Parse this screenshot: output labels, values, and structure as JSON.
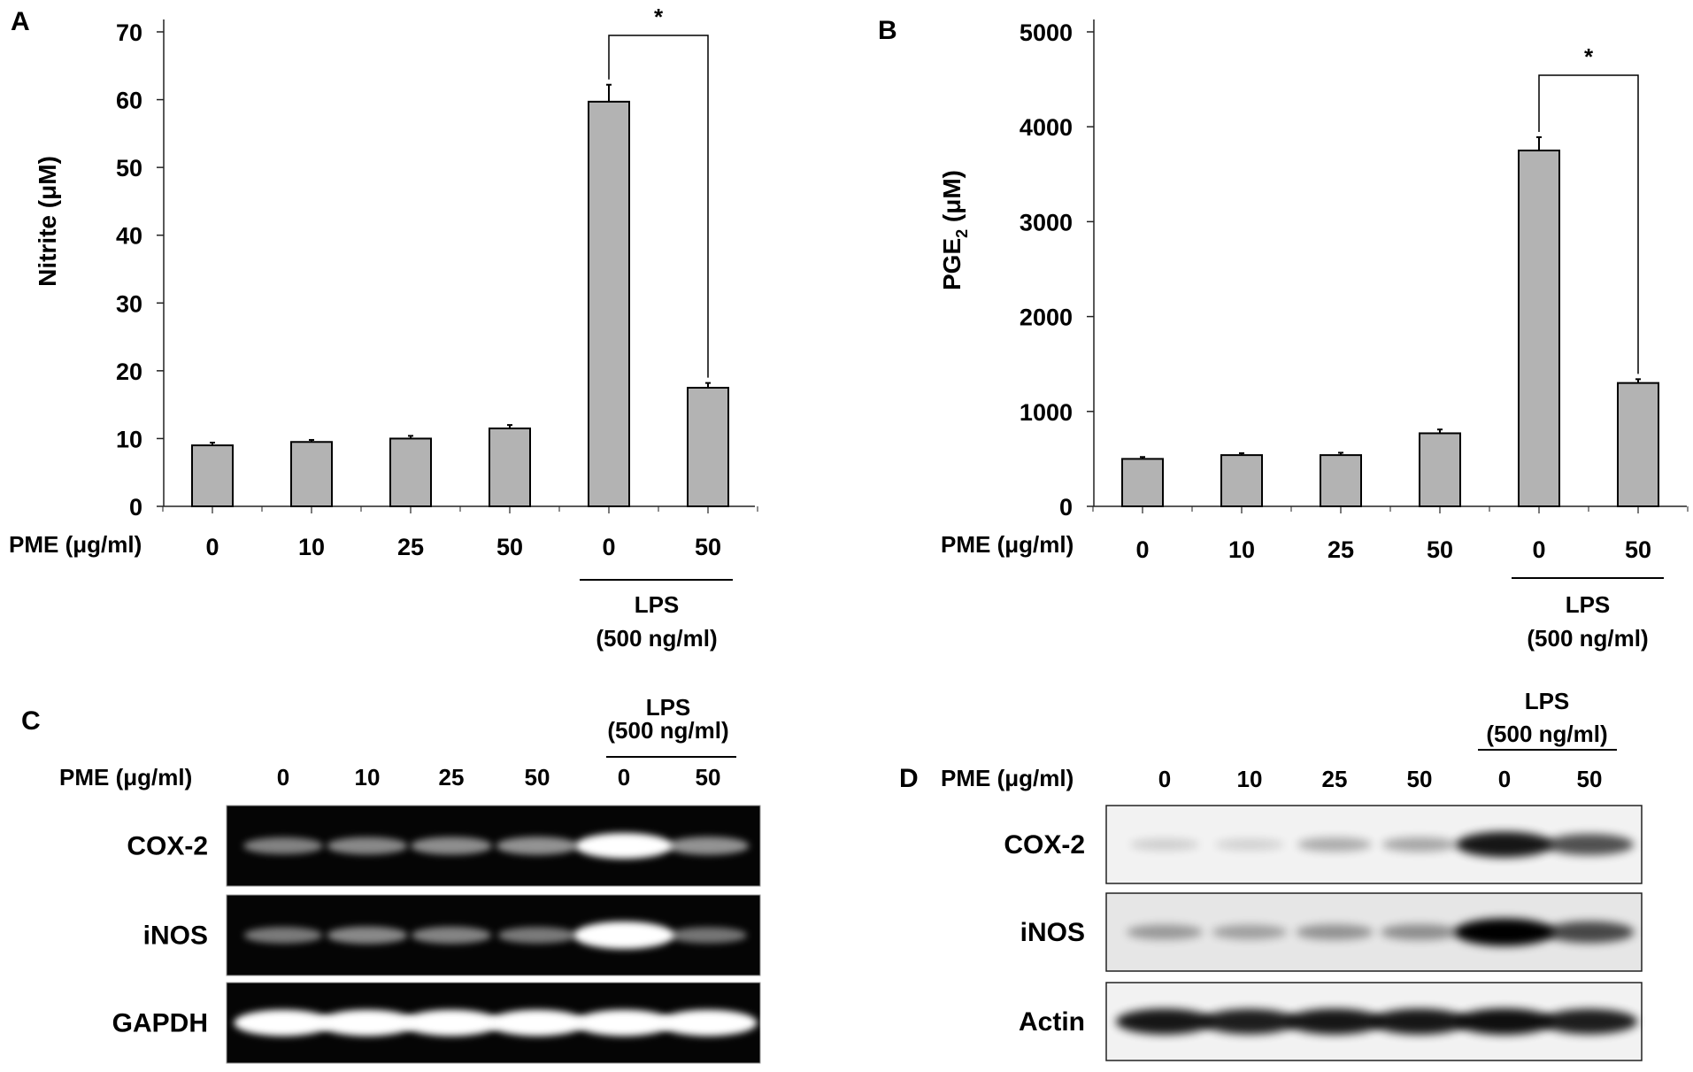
{
  "figure": {
    "panels": [
      {
        "letter": "A",
        "ylabel": "Nitrite (μM)",
        "xaxis_label": "PME (μg/ml)",
        "group_label_1": "LPS",
        "group_label_2": "(500 ng/ml)",
        "significance": "*"
      },
      {
        "letter": "B",
        "ylabel_main": "PGE",
        "ylabel_sub": "2",
        "ylabel_unit": " (μM)",
        "xaxis_label": "PME (μg/ml)",
        "group_label_1": "LPS",
        "group_label_2": "(500 ng/ml)",
        "significance": "*"
      }
    ],
    "gels": [
      {
        "letter": "C",
        "pme_label": "PME (μg/ml)",
        "lanes": [
          "0",
          "10",
          "25",
          "50",
          "0",
          "50"
        ],
        "lps_label_1": "LPS",
        "lps_label_2": "(500 ng/ml)",
        "rows": [
          {
            "label": "COX-2",
            "intensities": [
              0.35,
              0.38,
              0.4,
              0.42,
              0.85,
              0.42
            ]
          },
          {
            "label": "iNOS",
            "intensities": [
              0.32,
              0.38,
              0.36,
              0.32,
              0.95,
              0.3
            ]
          },
          {
            "label": "GAPDH",
            "intensities": [
              0.88,
              0.88,
              0.88,
              0.88,
              0.88,
              0.88
            ]
          }
        ]
      },
      {
        "letter": "D",
        "pme_label": "PME (μg/ml)",
        "lanes": [
          "0",
          "10",
          "25",
          "50",
          "0",
          "50"
        ],
        "lps_label_1": "LPS",
        "lps_label_2": "(500 ng/ml)",
        "rows": [
          {
            "label": "COX-2",
            "intensities": [
              0.05,
              0.04,
              0.2,
              0.22,
              0.85,
              0.6
            ]
          },
          {
            "label": "iNOS",
            "intensities": [
              0.25,
              0.22,
              0.28,
              0.3,
              0.95,
              0.62
            ]
          },
          {
            "label": "Actin",
            "intensities": [
              0.85,
              0.82,
              0.85,
              0.85,
              0.88,
              0.82
            ]
          }
        ]
      }
    ]
  },
  "chart_data": [
    {
      "type": "bar",
      "categories": [
        "0",
        "10",
        "25",
        "50",
        "0",
        "50"
      ],
      "values": [
        9.0,
        9.5,
        10.0,
        11.5,
        59.7,
        17.5
      ],
      "errors": [
        0.4,
        0.3,
        0.4,
        0.5,
        2.5,
        0.7
      ],
      "ylabel": "Nitrite (μM)",
      "xlabel": "PME (μg/ml)",
      "ylim": [
        0,
        70
      ],
      "yticks": [
        0,
        10,
        20,
        30,
        40,
        50,
        60,
        70
      ],
      "group": {
        "label": "LPS (500 ng/ml)",
        "from_index": 4,
        "to_index": 5
      },
      "significance": {
        "between": [
          4,
          5
        ],
        "label": "*"
      }
    },
    {
      "type": "bar",
      "categories": [
        "0",
        "10",
        "25",
        "50",
        "0",
        "50"
      ],
      "values": [
        500,
        540,
        540,
        770,
        3750,
        1300
      ],
      "errors": [
        20,
        20,
        25,
        40,
        140,
        40
      ],
      "ylabel": "PGE2 (μM)",
      "xlabel": "PME (μg/ml)",
      "ylim": [
        0,
        5000
      ],
      "yticks": [
        0,
        1000,
        2000,
        3000,
        4000,
        5000
      ],
      "group": {
        "label": "LPS (500 ng/ml)",
        "from_index": 4,
        "to_index": 5
      },
      "significance": {
        "between": [
          4,
          5
        ],
        "label": "*"
      }
    }
  ]
}
